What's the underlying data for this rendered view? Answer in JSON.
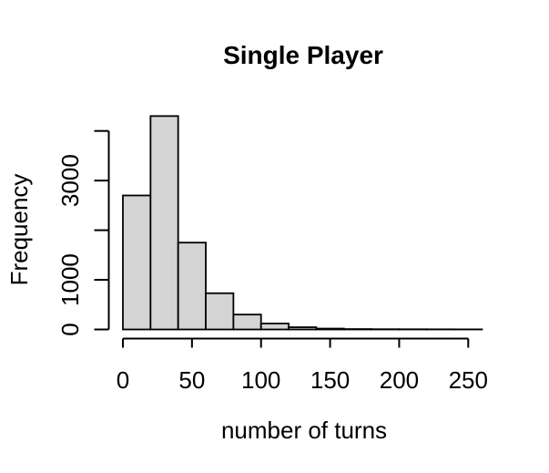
{
  "chart_data": {
    "type": "bar",
    "subtype": "histogram",
    "title": "Single Player",
    "xlabel": "number of turns",
    "ylabel": "Frequency",
    "bin_edges": [
      0,
      20,
      40,
      60,
      80,
      100,
      120,
      140,
      160,
      180,
      200,
      220,
      240,
      260
    ],
    "counts": [
      2700,
      4300,
      1750,
      730,
      300,
      120,
      45,
      18,
      8,
      5,
      4,
      3,
      2
    ],
    "x_ticks": [
      {
        "value": 0,
        "label": "0"
      },
      {
        "value": 50,
        "label": "50"
      },
      {
        "value": 100,
        "label": "100"
      },
      {
        "value": 150,
        "label": "150"
      },
      {
        "value": 200,
        "label": "200"
      },
      {
        "value": 250,
        "label": "250"
      }
    ],
    "y_ticks": [
      {
        "value": 0,
        "label": "0"
      },
      {
        "value": 1000,
        "label": "1000"
      },
      {
        "value": 2000,
        "label": ""
      },
      {
        "value": 3000,
        "label": "3000"
      },
      {
        "value": 4000,
        "label": ""
      }
    ],
    "xlim": [
      0,
      260
    ],
    "ylim": [
      0,
      4300
    ],
    "grid": false,
    "legend": "none",
    "bar_fill": "#d4d4d4",
    "bar_stroke": "#000000",
    "axis_color": "#000000",
    "text_color": "#000000",
    "background": "#ffffff"
  }
}
